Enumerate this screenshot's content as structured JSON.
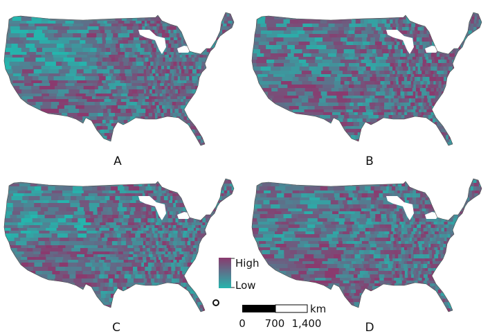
{
  "panels": [
    {
      "label": "A",
      "seed": 11
    },
    {
      "label": "B",
      "seed": 23
    },
    {
      "label": "C",
      "seed": 37
    },
    {
      "label": "D",
      "seed": 51
    }
  ],
  "legend": {
    "high_label": "High",
    "low_label": "Low"
  },
  "colors": {
    "high": "#8a3a6e",
    "low": "#25b5ad",
    "mid": "#5e7b8a",
    "border": "#4a4a4a",
    "background": "#ffffff"
  },
  "scale_bar": {
    "unit": "km",
    "tick_labels": [
      "0",
      "700",
      "1,400"
    ]
  },
  "icons": {
    "north_marker": "circle-marker-icon"
  }
}
